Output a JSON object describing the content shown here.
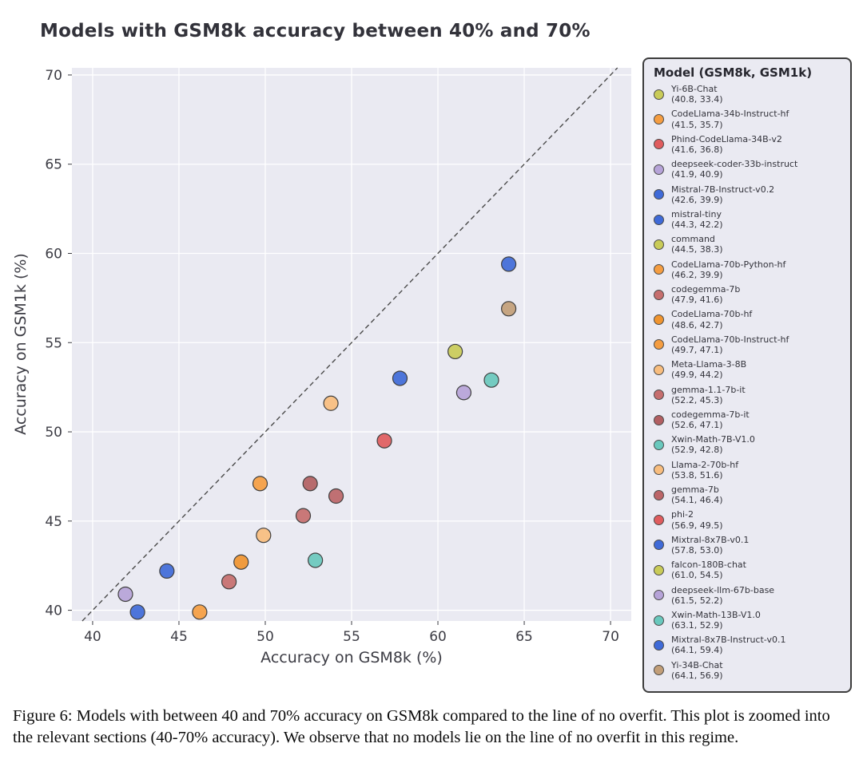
{
  "figure": {
    "caption": "Figure 6: Models with between 40 and 70% accuracy on GSM8k compared to the line of no overfit. This plot is zoomed into the relevant sections (40-70% accuracy). We observe that no models lie on the line of no overfit in this regime."
  },
  "chart_data": {
    "type": "scatter",
    "title": "Models with GSM8k accuracy between 40% and 70%",
    "xlabel": "Accuracy on GSM8k (%)",
    "ylabel": "Accuracy on GSM1k (%)",
    "xlim": [
      38.8,
      71.2
    ],
    "ylim": [
      39.4,
      70.4
    ],
    "xticks": [
      40,
      45,
      50,
      55,
      60,
      65,
      70
    ],
    "yticks": [
      40,
      45,
      50,
      55,
      60,
      65,
      70
    ],
    "grid": true,
    "plot_background": "#eaeaf2",
    "reference_line": {
      "type": "y=x",
      "label": "line of no overfit",
      "style": "dashed",
      "color": "#4a4a4a"
    },
    "legend_title": "Model (GSM8k, GSM1k)",
    "legend_position": "right",
    "points": [
      {
        "name": "Yi-6B-Chat",
        "gsm8k": 40.8,
        "gsm1k": 33.4,
        "color": "#c9cb58"
      },
      {
        "name": "CodeLlama-34b-Instruct-hf",
        "gsm8k": 41.5,
        "gsm1k": 35.7,
        "color": "#f59d41"
      },
      {
        "name": "Phind-CodeLlama-34B-v2",
        "gsm8k": 41.6,
        "gsm1k": 36.8,
        "color": "#e05c5e"
      },
      {
        "name": "deepseek-coder-33b-instruct",
        "gsm8k": 41.9,
        "gsm1k": 40.9,
        "color": "#b6a3d8"
      },
      {
        "name": "Mistral-7B-Instruct-v0.2",
        "gsm8k": 42.6,
        "gsm1k": 39.9,
        "color": "#3f6ad8"
      },
      {
        "name": "mistral-tiny",
        "gsm8k": 44.3,
        "gsm1k": 42.2,
        "color": "#3f6ad8"
      },
      {
        "name": "command",
        "gsm8k": 44.5,
        "gsm1k": 38.3,
        "color": "#c9cb58"
      },
      {
        "name": "CodeLlama-70b-Python-hf",
        "gsm8k": 46.2,
        "gsm1k": 39.9,
        "color": "#f59d41"
      },
      {
        "name": "codegemma-7b",
        "gsm8k": 47.9,
        "gsm1k": 41.6,
        "color": "#c66e6e"
      },
      {
        "name": "CodeLlama-70b-hf",
        "gsm8k": 48.6,
        "gsm1k": 42.7,
        "color": "#f0942f"
      },
      {
        "name": "CodeLlama-70b-Instruct-hf",
        "gsm8k": 49.7,
        "gsm1k": 47.1,
        "color": "#f59d41"
      },
      {
        "name": "Meta-Llama-3-8B",
        "gsm8k": 49.9,
        "gsm1k": 44.2,
        "color": "#f8bd7e"
      },
      {
        "name": "gemma-1.1-7b-it",
        "gsm8k": 52.2,
        "gsm1k": 45.3,
        "color": "#c66e6e"
      },
      {
        "name": "codegemma-7b-it",
        "gsm8k": 52.6,
        "gsm1k": 47.1,
        "color": "#b25f62"
      },
      {
        "name": "Xwin-Math-7B-V1.0",
        "gsm8k": 52.9,
        "gsm1k": 42.8,
        "color": "#69c8bd"
      },
      {
        "name": "Llama-2-70b-hf",
        "gsm8k": 53.8,
        "gsm1k": 51.6,
        "color": "#f8bd7e"
      },
      {
        "name": "gemma-7b",
        "gsm8k": 54.1,
        "gsm1k": 46.4,
        "color": "#bc6568"
      },
      {
        "name": "phi-2",
        "gsm8k": 56.9,
        "gsm1k": 49.5,
        "color": "#e05c5e"
      },
      {
        "name": "Mixtral-8x7B-v0.1",
        "gsm8k": 57.8,
        "gsm1k": 53.0,
        "color": "#3f6ad8"
      },
      {
        "name": "falcon-180B-chat",
        "gsm8k": 61.0,
        "gsm1k": 54.5,
        "color": "#c9cb58"
      },
      {
        "name": "deepseek-llm-67b-base",
        "gsm8k": 61.5,
        "gsm1k": 52.2,
        "color": "#b6a3d8"
      },
      {
        "name": "Xwin-Math-13B-V1.0",
        "gsm8k": 63.1,
        "gsm1k": 52.9,
        "color": "#69c8bd"
      },
      {
        "name": "Mixtral-8x7B-Instruct-v0.1",
        "gsm8k": 64.1,
        "gsm1k": 59.4,
        "color": "#3f6ad8"
      },
      {
        "name": "Yi-34B-Chat",
        "gsm8k": 64.1,
        "gsm1k": 56.9,
        "color": "#c29e78"
      }
    ]
  }
}
